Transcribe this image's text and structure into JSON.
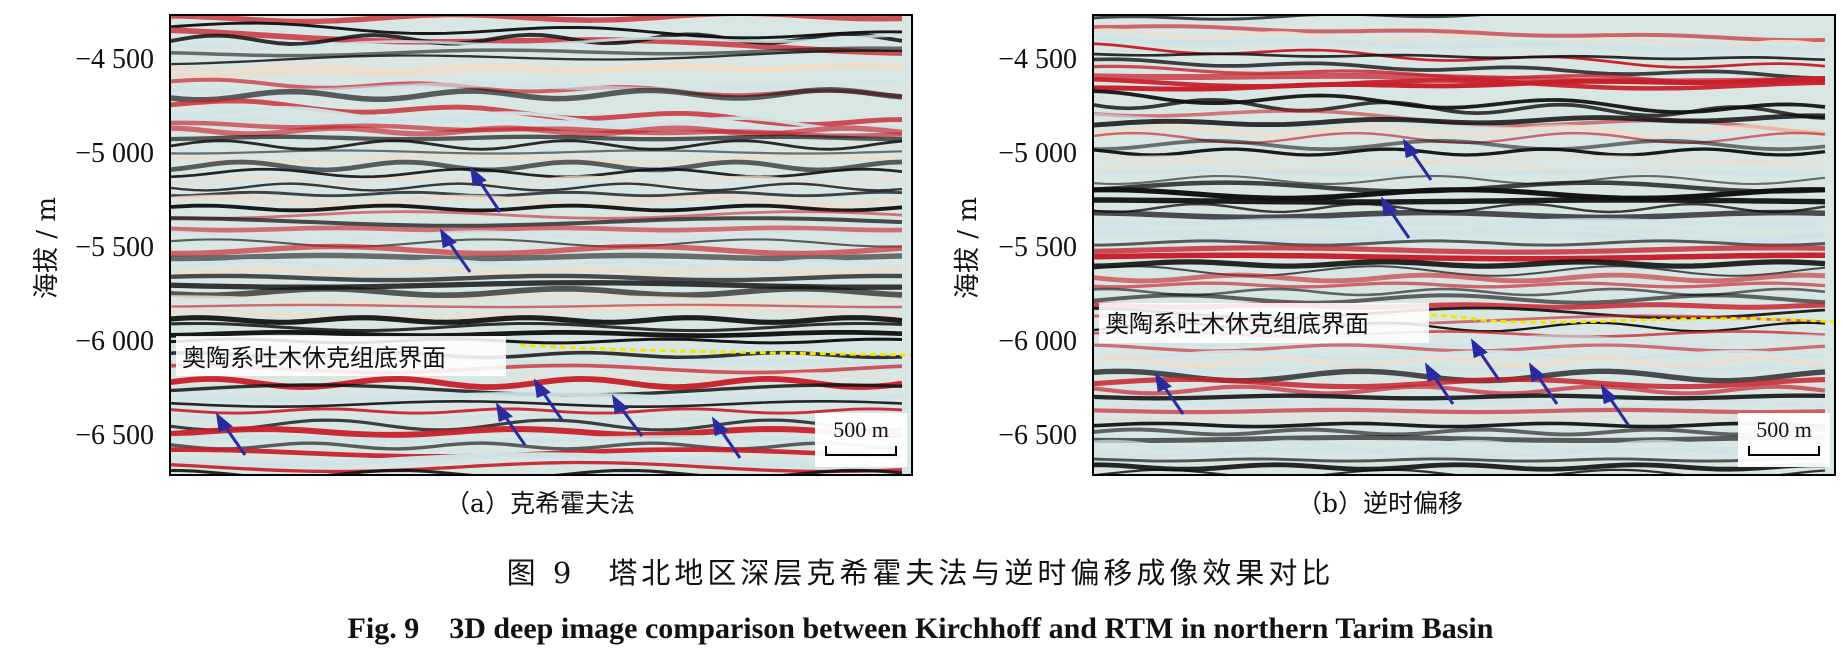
{
  "panels": [
    {
      "id": "a",
      "caption": "（a）克希霍夫法",
      "y_axis_label": "海拔 / m",
      "y_ticks": [
        "−4 500",
        "−5 000",
        "−5 500",
        "−6 000",
        "−6 500"
      ],
      "horizon_label": "奥陶系吐木休克组底界面",
      "scale_bar": "500 m"
    },
    {
      "id": "b",
      "caption": "（b）逆时偏移",
      "y_axis_label": "海拔 / m",
      "y_ticks": [
        "−4 500",
        "−5 000",
        "−5 500",
        "−6 000",
        "−6 500"
      ],
      "horizon_label": "奥陶系吐木休克组底界面",
      "scale_bar": "500 m"
    }
  ],
  "figure_title_cn": "图 9　塔北地区深层克希霍夫法与逆时偏移成像效果对比",
  "figure_title_en": "Fig. 9　3D deep image comparison between Kirchhoff and RTM in northern Tarim Basin",
  "colors": {
    "seismic_red": "#c8202a",
    "seismic_black": "#111111",
    "seismic_light": "#cfe3e8",
    "seismic_cream": "#f0dcc8",
    "horizon_line": "#f2e600",
    "arrow": "#2b2ba0"
  }
}
